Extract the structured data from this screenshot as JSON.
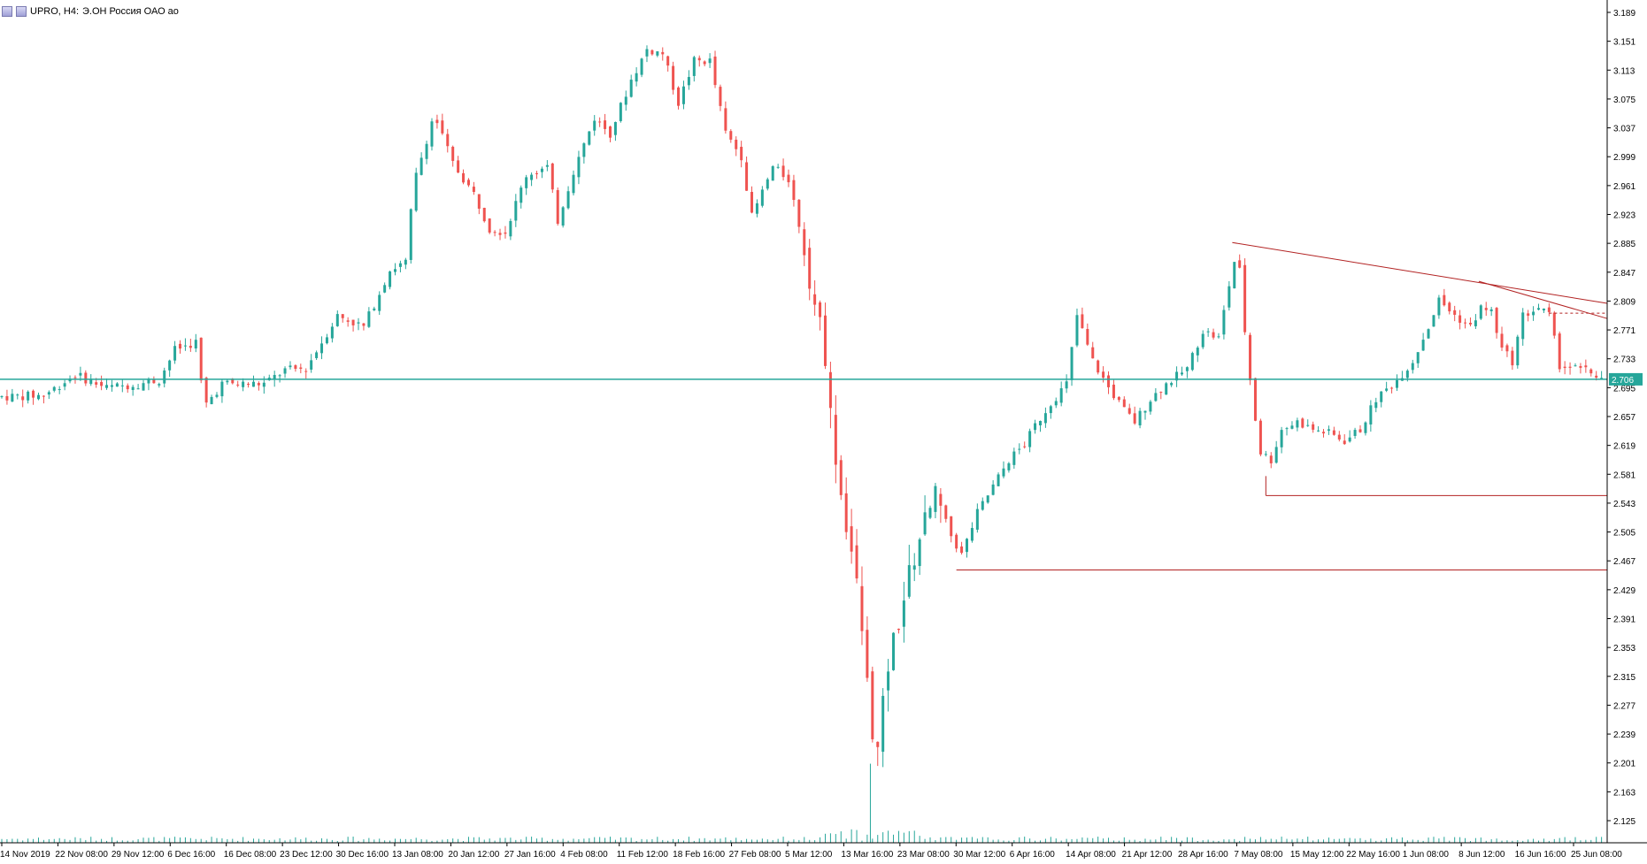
{
  "header": {
    "symbol_label": "UPRO, H4:",
    "description": "Э.ОН Россия ОАО ао",
    "icons": [
      "window-icon",
      "chart-icon"
    ]
  },
  "price_scale": {
    "ticks": [
      "3.189",
      "3.151",
      "3.113",
      "3.075",
      "3.037",
      "2.999",
      "2.961",
      "2.923",
      "2.885",
      "2.847",
      "2.809",
      "2.771",
      "2.733",
      "2.695",
      "2.657",
      "2.619",
      "2.581",
      "2.543",
      "2.505",
      "2.467",
      "2.429",
      "2.391",
      "2.353",
      "2.315",
      "2.277",
      "2.239",
      "2.201",
      "2.163",
      "2.125"
    ],
    "current_price_label": "2.706"
  },
  "time_scale": {
    "ticks": [
      "14 Nov 2019",
      "22 Nov 08:00",
      "29 Nov 12:00",
      "6 Dec 16:00",
      "16 Dec 08:00",
      "23 Dec 12:00",
      "30 Dec 16:00",
      "13 Jan 08:00",
      "20 Jan 12:00",
      "27 Jan 16:00",
      "4 Feb 08:00",
      "11 Feb 12:00",
      "18 Feb 16:00",
      "27 Feb 08:00",
      "5 Mar 12:00",
      "13 Mar 16:00",
      "23 Mar 08:00",
      "30 Mar 12:00",
      "6 Apr 16:00",
      "14 Apr 08:00",
      "21 Apr 12:00",
      "28 Apr 16:00",
      "7 May 08:00",
      "15 May 12:00",
      "22 May 16:00",
      "1 Jun 08:00",
      "8 Jun 12:00",
      "16 Jun 16:00",
      "25 Jun 08:00"
    ]
  },
  "colors": {
    "bull": "#26a69a",
    "bear": "#ef5350",
    "level_line": "#26a69a",
    "trend_line": "#b22222",
    "volume": "#26a69a",
    "price_tag_bg": "#26a69a"
  },
  "chart_data": {
    "type": "candlestick",
    "title": "UPRO, H4:",
    "symbol": "UPRO",
    "timeframe": "H4",
    "x_range": [
      "14 Nov 2019",
      "25 Jun 08:00"
    ],
    "ylim": [
      2.125,
      3.189
    ],
    "horizontal_levels": [
      2.706,
      2.553,
      2.455
    ],
    "trend_lines": [
      {
        "from": {
          "x": "7 May 08:00",
          "y": 2.886
        },
        "to": {
          "x": "25 Jun 08:00",
          "y": 2.806
        }
      },
      {
        "from": {
          "x": "8 Jun 12:00",
          "y": 2.835
        },
        "to": {
          "x": "25 Jun 08:00",
          "y": 2.786
        }
      }
    ],
    "support_from": [
      {
        "x": "7 May 08:00",
        "y": 2.553
      },
      {
        "x": "23 Mar 08:00",
        "y": 2.455
      }
    ],
    "path_points": [
      [
        0,
        2.683
      ],
      [
        40,
        2.685
      ],
      [
        70,
        2.712
      ],
      [
        100,
        2.695
      ],
      [
        130,
        2.7
      ],
      [
        150,
        2.705
      ],
      [
        165,
        2.745
      ],
      [
        185,
        2.755
      ],
      [
        193,
        2.67
      ],
      [
        210,
        2.7
      ],
      [
        250,
        2.7
      ],
      [
        270,
        2.718
      ],
      [
        290,
        2.72
      ],
      [
        320,
        2.79
      ],
      [
        345,
        2.775
      ],
      [
        370,
        2.85
      ],
      [
        385,
        2.86
      ],
      [
        393,
        2.965
      ],
      [
        412,
        3.055
      ],
      [
        430,
        2.99
      ],
      [
        450,
        2.95
      ],
      [
        465,
        2.905
      ],
      [
        480,
        2.9
      ],
      [
        500,
        2.975
      ],
      [
        520,
        2.985
      ],
      [
        530,
        2.915
      ],
      [
        545,
        2.98
      ],
      [
        565,
        3.05
      ],
      [
        580,
        3.03
      ],
      [
        600,
        3.1
      ],
      [
        615,
        3.14
      ],
      [
        630,
        3.135
      ],
      [
        645,
        3.07
      ],
      [
        660,
        3.125
      ],
      [
        675,
        3.125
      ],
      [
        690,
        3.03
      ],
      [
        705,
        3.0
      ],
      [
        715,
        2.92
      ],
      [
        735,
        2.985
      ],
      [
        750,
        2.97
      ],
      [
        765,
        2.88
      ],
      [
        775,
        2.805
      ],
      [
        785,
        2.74
      ],
      [
        790,
        2.66
      ],
      [
        800,
        2.555
      ],
      [
        810,
        2.48
      ],
      [
        818,
        2.405
      ],
      [
        828,
        2.26
      ],
      [
        835,
        2.215
      ],
      [
        845,
        2.33
      ],
      [
        860,
        2.42
      ],
      [
        875,
        2.5
      ],
      [
        890,
        2.55
      ],
      [
        905,
        2.5
      ],
      [
        915,
        2.475
      ],
      [
        930,
        2.53
      ],
      [
        945,
        2.565
      ],
      [
        960,
        2.6
      ],
      [
        975,
        2.62
      ],
      [
        985,
        2.645
      ],
      [
        1000,
        2.675
      ],
      [
        1015,
        2.7
      ],
      [
        1025,
        2.79
      ],
      [
        1040,
        2.73
      ],
      [
        1055,
        2.695
      ],
      [
        1070,
        2.665
      ],
      [
        1080,
        2.65
      ],
      [
        1095,
        2.68
      ],
      [
        1110,
        2.7
      ],
      [
        1130,
        2.72
      ],
      [
        1145,
        2.77
      ],
      [
        1160,
        2.76
      ],
      [
        1170,
        2.83
      ],
      [
        1178,
        2.88
      ],
      [
        1185,
        2.77
      ],
      [
        1192,
        2.68
      ],
      [
        1200,
        2.61
      ],
      [
        1210,
        2.6
      ],
      [
        1220,
        2.64
      ],
      [
        1235,
        2.65
      ],
      [
        1250,
        2.64
      ],
      [
        1265,
        2.635
      ],
      [
        1280,
        2.625
      ],
      [
        1295,
        2.64
      ],
      [
        1310,
        2.68
      ],
      [
        1330,
        2.705
      ],
      [
        1345,
        2.73
      ],
      [
        1360,
        2.775
      ],
      [
        1370,
        2.81
      ],
      [
        1385,
        2.79
      ],
      [
        1400,
        2.775
      ],
      [
        1410,
        2.8
      ],
      [
        1420,
        2.795
      ],
      [
        1430,
        2.745
      ],
      [
        1440,
        2.73
      ],
      [
        1450,
        2.79
      ],
      [
        1465,
        2.8
      ],
      [
        1475,
        2.79
      ],
      [
        1485,
        2.725
      ],
      [
        1500,
        2.72
      ],
      [
        1515,
        2.715
      ],
      [
        1527,
        2.706
      ]
    ],
    "path_x_units": "candle_index_0_to_1527"
  }
}
